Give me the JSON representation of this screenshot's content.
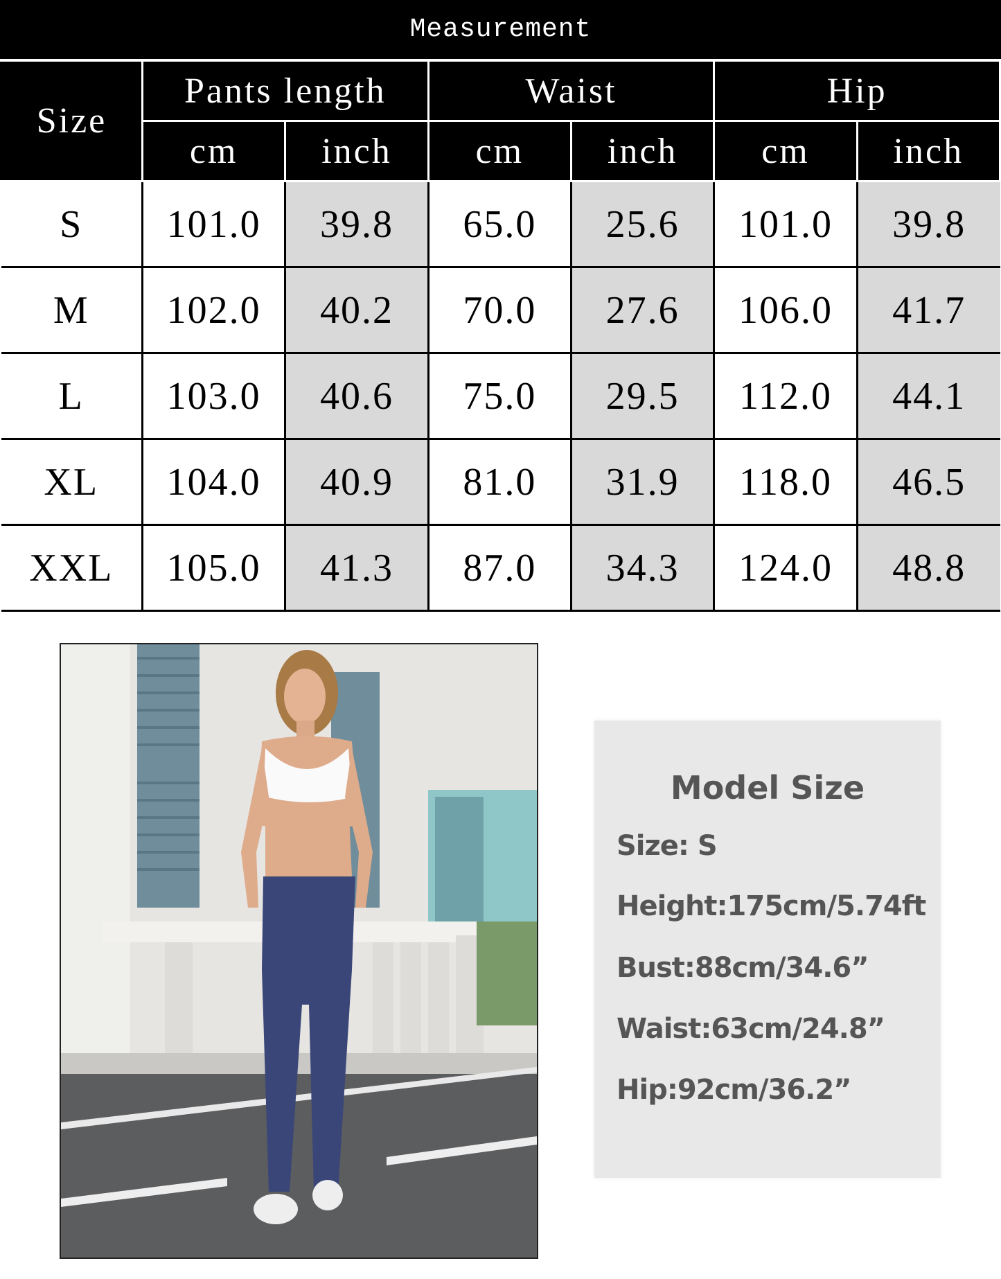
{
  "table": {
    "title": "Measurement",
    "size_header": "Size",
    "groups": [
      "Pants length",
      "Waist",
      "Hip"
    ],
    "units": [
      "cm",
      "inch",
      "cm",
      "inch",
      "cm",
      "inch"
    ],
    "rows": [
      {
        "size": "S",
        "values": [
          "101.0",
          "39.8",
          "65.0",
          "25.6",
          "101.0",
          "39.8"
        ]
      },
      {
        "size": "M",
        "values": [
          "102.0",
          "40.2",
          "70.0",
          "27.6",
          "106.0",
          "41.7"
        ]
      },
      {
        "size": "L",
        "values": [
          "103.0",
          "40.6",
          "75.0",
          "29.5",
          "112.0",
          "44.1"
        ]
      },
      {
        "size": "XL",
        "values": [
          "104.0",
          "40.9",
          "81.0",
          "31.9",
          "118.0",
          "46.5"
        ]
      },
      {
        "size": "XXL",
        "values": [
          "105.0",
          "41.3",
          "87.0",
          "34.3",
          "124.0",
          "48.8"
        ]
      }
    ]
  },
  "model": {
    "title": "Model Size",
    "lines": [
      "Size:   S",
      "Height:175cm/5.74ft",
      "Bust:88cm/34.6”",
      "Waist:63cm/24.8”",
      "Hip:92cm/36.2”"
    ]
  },
  "colors": {
    "header_bg": "#000000",
    "inch_cell_bg": "#d9d9d9",
    "model_box_bg": "#e8e8e8",
    "pants": "#3a4678"
  }
}
